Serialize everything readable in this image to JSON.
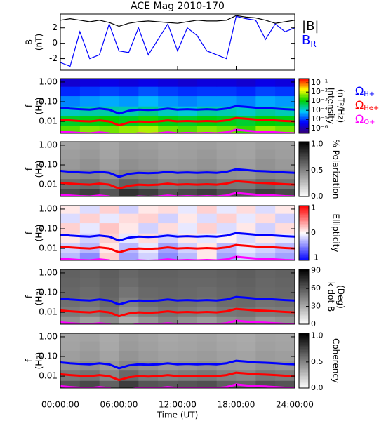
{
  "chart_data": [
    {
      "type": "line",
      "title": "ACE Mag 2010-170",
      "ylabel": [
        "B",
        "(nT)"
      ],
      "xlim": [
        0,
        24
      ],
      "ylim": [
        -3.5,
        3.8
      ],
      "yticks": [
        -2,
        0,
        2
      ],
      "x": [
        0,
        1,
        2,
        3,
        4,
        5,
        6,
        7,
        8,
        9,
        10,
        11,
        12,
        13,
        14,
        15,
        16,
        17,
        18,
        19,
        20,
        21,
        22,
        23,
        24
      ],
      "series": [
        {
          "name": "|B|",
          "color": "#000000",
          "values": [
            3.0,
            3.2,
            3.0,
            2.8,
            3.0,
            2.7,
            2.2,
            2.6,
            2.8,
            2.9,
            2.8,
            2.7,
            2.6,
            2.8,
            3.0,
            2.9,
            2.9,
            3.0,
            3.6,
            3.4,
            3.3,
            3.0,
            2.6,
            2.8,
            3.0
          ]
        },
        {
          "name": "B",
          "subscript": "R",
          "color": "#0000ff",
          "values": [
            -2.5,
            -3.0,
            1.5,
            -2.0,
            -1.5,
            2.5,
            -1.0,
            -1.2,
            2.0,
            -1.5,
            0.5,
            2.5,
            -1.0,
            2.0,
            1.0,
            -1.0,
            -1.5,
            -2.0,
            3.5,
            3.2,
            3.0,
            0.5,
            2.5,
            1.5,
            2.0
          ]
        }
      ]
    },
    {
      "type": "spectrogram",
      "ylabel": [
        "f",
        "(Hz)"
      ],
      "log": true,
      "xlim": [
        0,
        24
      ],
      "ylim": [
        0.0025,
        1.5
      ],
      "yticks": [
        0.01,
        {
          "value": 0.1,
          "label": "0.10"
        },
        {
          "value": 1,
          "label": "1.00"
        }
      ],
      "time_bins": [
        0,
        2,
        4,
        6,
        8,
        10,
        12,
        14,
        16,
        18,
        20,
        22,
        24
      ],
      "freq_bins": [
        0.0025,
        0.006,
        0.02,
        0.06,
        0.2,
        0.6,
        1.5
      ],
      "colorbar": {
        "label": [
          "Intensity",
          "(nT²/Hz)"
        ],
        "colormap": "rainbow",
        "log": true,
        "lim": [
          3e-07,
          0.3
        ],
        "ticks": [
          {
            "value": 0.1,
            "label": "10⁻¹"
          },
          {
            "value": 0.01,
            "label": "10⁻²"
          },
          {
            "value": 0.001,
            "label": "10⁻³"
          },
          {
            "value": 0.0001,
            "label": "10⁻⁴"
          },
          {
            "value": 1e-05,
            "label": "10⁻⁵"
          },
          {
            "value": 1e-06,
            "label": "10⁻⁶"
          }
        ]
      },
      "z": [
        [
          0.003,
          0.005,
          0.004,
          0.006,
          0.008,
          0.004,
          0.003,
          0.005,
          0.004,
          0.002,
          0.006,
          0.004
        ],
        [
          0.0008,
          0.001,
          0.0012,
          0.0009,
          0.0015,
          0.001,
          0.0008,
          0.0011,
          0.0009,
          0.0007,
          0.0012,
          0.001
        ],
        [
          0.00015,
          0.0002,
          0.0002,
          0.00018,
          0.00025,
          0.00015,
          0.00012,
          0.0002,
          0.00018,
          0.00014,
          0.00022,
          0.00017
        ],
        [
          3e-05,
          4e-05,
          5e-05,
          4e-05,
          6e-05,
          4e-05,
          3e-05,
          4e-05,
          4e-05,
          3e-05,
          5e-05,
          4e-05
        ],
        [
          8e-06,
          1e-05,
          1.2e-05,
          1e-05,
          1.5e-05,
          1.1e-05,
          9e-06,
          1e-05,
          1e-05,
          8e-06,
          1.2e-05,
          1e-05
        ],
        [
          2e-06,
          2.5e-06,
          3e-06,
          2.5e-06,
          3e-06,
          2.5e-06,
          2e-06,
          2.5e-06,
          2.5e-06,
          2e-06,
          3e-06,
          2.5e-06
        ]
      ],
      "x": [
        0,
        1,
        2,
        3,
        4,
        5,
        6,
        7,
        8,
        9,
        10,
        11,
        12,
        13,
        14,
        15,
        16,
        17,
        18,
        19,
        20,
        21,
        22,
        23,
        24
      ],
      "series": [
        {
          "name": "Ω",
          "subscript": "H+",
          "color": "#0000ff",
          "values": [
            0.05,
            0.045,
            0.042,
            0.04,
            0.045,
            0.04,
            0.025,
            0.035,
            0.04,
            0.038,
            0.04,
            0.045,
            0.04,
            0.042,
            0.04,
            0.042,
            0.04,
            0.045,
            0.06,
            0.055,
            0.05,
            0.048,
            0.045,
            0.042,
            0.04
          ]
        },
        {
          "name": "Ω",
          "subscript": "He+",
          "color": "#ff0000",
          "values": [
            0.0125,
            0.0113,
            0.0105,
            0.01,
            0.0113,
            0.01,
            0.0063,
            0.0088,
            0.01,
            0.0095,
            0.01,
            0.0113,
            0.01,
            0.0105,
            0.01,
            0.0105,
            0.01,
            0.0113,
            0.015,
            0.0138,
            0.0125,
            0.012,
            0.0113,
            0.0105,
            0.01
          ]
        },
        {
          "name": "Ω",
          "subscript": "O+",
          "color": "#ff00ff",
          "values": [
            0.0031,
            0.0028,
            0.0026,
            0.0025,
            0.0028,
            0.0025,
            0.0016,
            0.0022,
            0.0025,
            0.0024,
            0.0025,
            0.0028,
            0.0025,
            0.0026,
            0.0025,
            0.0026,
            0.0025,
            0.0028,
            0.0038,
            0.0034,
            0.0031,
            0.003,
            0.0028,
            0.0026,
            0.0025
          ]
        }
      ]
    },
    {
      "type": "spectrogram",
      "ylabel": [
        "f",
        "(Hz)"
      ],
      "log": true,
      "xlim": [
        0,
        24
      ],
      "ylim": [
        0.0025,
        1.5
      ],
      "yticks": [
        0.01,
        {
          "value": 0.1,
          "label": "0.10"
        },
        {
          "value": 1,
          "label": "1.00"
        }
      ],
      "time_bins": [
        0,
        2,
        4,
        6,
        8,
        10,
        12,
        14,
        16,
        18,
        20,
        22,
        24
      ],
      "freq_bins": [
        0.0025,
        0.006,
        0.02,
        0.06,
        0.2,
        0.6,
        1.5
      ],
      "colorbar": {
        "label": [
          "% Polarization"
        ],
        "colormap": "gray",
        "lim": [
          0,
          1.05
        ],
        "ticks": [
          {
            "value": 0,
            "label": "0.0"
          },
          0.5,
          {
            "value": 1,
            "label": "1.0"
          }
        ]
      },
      "z": [
        [
          0.75,
          0.8,
          0.7,
          0.85,
          0.8,
          0.7,
          0.75,
          0.8,
          0.72,
          0.7,
          0.8,
          0.75
        ],
        [
          0.6,
          0.62,
          0.55,
          0.65,
          0.6,
          0.55,
          0.58,
          0.6,
          0.56,
          0.55,
          0.62,
          0.58
        ],
        [
          0.48,
          0.5,
          0.45,
          0.52,
          0.5,
          0.46,
          0.47,
          0.5,
          0.46,
          0.45,
          0.5,
          0.48
        ],
        [
          0.42,
          0.45,
          0.4,
          0.46,
          0.44,
          0.41,
          0.42,
          0.44,
          0.41,
          0.4,
          0.45,
          0.42
        ],
        [
          0.4,
          0.42,
          0.38,
          0.43,
          0.42,
          0.39,
          0.4,
          0.42,
          0.39,
          0.38,
          0.42,
          0.4
        ],
        [
          0.38,
          0.4,
          0.37,
          0.41,
          0.4,
          0.38,
          0.39,
          0.4,
          0.38,
          0.37,
          0.4,
          0.39
        ]
      ]
    },
    {
      "type": "spectrogram",
      "ylabel": [
        "f",
        "(Hz)"
      ],
      "log": true,
      "xlim": [
        0,
        24
      ],
      "ylim": [
        0.0025,
        1.5
      ],
      "yticks": [
        0.01,
        {
          "value": 0.1,
          "label": "0.10"
        },
        {
          "value": 1,
          "label": "1.00"
        }
      ],
      "time_bins": [
        0,
        2,
        4,
        6,
        8,
        10,
        12,
        14,
        16,
        18,
        20,
        22,
        24
      ],
      "freq_bins": [
        0.0025,
        0.006,
        0.02,
        0.06,
        0.2,
        0.6,
        1.5
      ],
      "colorbar": {
        "label": [
          "Ellipticity"
        ],
        "colormap": "bwr",
        "lim": [
          -1.1,
          1.1
        ],
        "ticks": [
          -1,
          0,
          1
        ]
      },
      "z": [
        [
          -0.3,
          -0.5,
          0.2,
          -0.4,
          -0.2,
          -0.5,
          -0.3,
          0.1,
          -0.4,
          -0.2,
          -0.3,
          -0.4
        ],
        [
          -0.2,
          -0.3,
          0.1,
          -0.3,
          -0.1,
          -0.4,
          -0.2,
          0.1,
          -0.3,
          -0.1,
          -0.2,
          -0.3
        ],
        [
          0.1,
          -0.2,
          0.2,
          -0.1,
          0.15,
          -0.2,
          0.1,
          -0.1,
          0.05,
          -0.15,
          0.1,
          -0.1
        ],
        [
          0.2,
          -0.1,
          0.25,
          0.1,
          -0.2,
          0.15,
          -0.1,
          0.2,
          -0.15,
          0.1,
          -0.2,
          0.15
        ],
        [
          -0.15,
          0.2,
          -0.1,
          0.15,
          0.2,
          -0.2,
          0.1,
          -0.15,
          0.2,
          -0.1,
          0.15,
          -0.2
        ],
        [
          0.1,
          -0.15,
          0.2,
          -0.2,
          0.1,
          0.15,
          -0.1,
          0.2,
          -0.1,
          0.15,
          -0.15,
          0.1
        ]
      ]
    },
    {
      "type": "spectrogram",
      "ylabel": [
        "f",
        "(Hz)"
      ],
      "log": true,
      "xlim": [
        0,
        24
      ],
      "ylim": [
        0.0025,
        1.5
      ],
      "yticks": [
        0.01,
        {
          "value": 0.1,
          "label": "0.10"
        },
        {
          "value": 1,
          "label": "1.00"
        }
      ],
      "time_bins": [
        0,
        2,
        4,
        6,
        8,
        10,
        12,
        14,
        16,
        18,
        20,
        22,
        24
      ],
      "freq_bins": [
        0.0025,
        0.006,
        0.02,
        0.06,
        0.2,
        0.6,
        1.5
      ],
      "colorbar": {
        "label": [
          "k dot B",
          "(Deg)"
        ],
        "colormap": "gray",
        "lim": [
          0,
          92
        ],
        "ticks": [
          0,
          30,
          60,
          90
        ]
      },
      "z": [
        [
          40,
          35,
          42,
          30,
          38,
          45,
          40,
          36,
          42,
          44,
          38,
          40
        ],
        [
          48,
          46,
          50,
          40,
          47,
          50,
          48,
          46,
          49,
          50,
          47,
          48
        ],
        [
          52,
          50,
          54,
          46,
          52,
          53,
          52,
          50,
          53,
          54,
          51,
          52
        ],
        [
          55,
          53,
          56,
          50,
          54,
          55,
          54,
          53,
          55,
          56,
          54,
          55
        ],
        [
          56,
          55,
          57,
          53,
          56,
          56,
          55,
          55,
          56,
          57,
          55,
          56
        ],
        [
          57,
          56,
          58,
          55,
          57,
          57,
          56,
          56,
          57,
          58,
          56,
          57
        ]
      ]
    },
    {
      "type": "spectrogram",
      "ylabel": [
        "f",
        "(Hz)"
      ],
      "log": true,
      "xlim": [
        0,
        24
      ],
      "ylim": [
        0.0025,
        1.5
      ],
      "yticks": [
        0.01,
        {
          "value": 0.1,
          "label": "0.10"
        },
        {
          "value": 1,
          "label": "1.00"
        }
      ],
      "time_bins": [
        0,
        2,
        4,
        6,
        8,
        10,
        12,
        14,
        16,
        18,
        20,
        22,
        24
      ],
      "freq_bins": [
        0.0025,
        0.006,
        0.02,
        0.06,
        0.2,
        0.6,
        1.5
      ],
      "colorbar": {
        "label": [
          "Coherency"
        ],
        "colormap": "gray",
        "lim": [
          0,
          1.05
        ],
        "ticks": [
          {
            "value": 0,
            "label": "0.0"
          },
          0.5,
          {
            "value": 1,
            "label": "1.0"
          }
        ]
      },
      "z": [
        [
          0.7,
          0.75,
          0.65,
          0.8,
          0.7,
          0.68,
          0.7,
          0.72,
          0.66,
          0.65,
          0.72,
          0.7
        ],
        [
          0.55,
          0.58,
          0.5,
          0.62,
          0.55,
          0.52,
          0.54,
          0.56,
          0.52,
          0.5,
          0.56,
          0.54
        ],
        [
          0.45,
          0.47,
          0.42,
          0.5,
          0.46,
          0.43,
          0.44,
          0.46,
          0.43,
          0.42,
          0.46,
          0.44
        ],
        [
          0.4,
          0.42,
          0.38,
          0.44,
          0.41,
          0.39,
          0.4,
          0.41,
          0.39,
          0.38,
          0.41,
          0.4
        ],
        [
          0.38,
          0.4,
          0.36,
          0.41,
          0.39,
          0.37,
          0.38,
          0.39,
          0.37,
          0.36,
          0.39,
          0.38
        ],
        [
          0.37,
          0.38,
          0.35,
          0.4,
          0.38,
          0.36,
          0.37,
          0.38,
          0.36,
          0.35,
          0.38,
          0.37
        ]
      ],
      "xlabel": "Time (UT)",
      "xticks": [
        {
          "value": 0,
          "label": "00:00:00"
        },
        {
          "value": 6,
          "label": "06:00:00"
        },
        {
          "value": 12,
          "label": "12:00:00"
        },
        {
          "value": 18,
          "label": "18:00:00"
        },
        {
          "value": 24,
          "label": "24:00:00"
        }
      ]
    }
  ]
}
